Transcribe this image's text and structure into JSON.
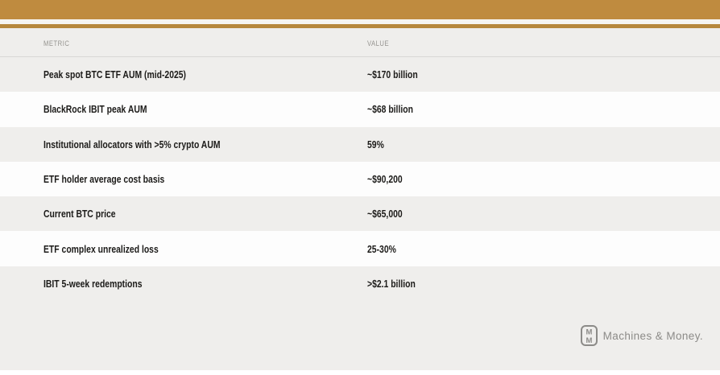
{
  "brand": {
    "top_bar_color": "#bf8b3f",
    "accent_strip_color": "#b7883d",
    "footer_name": "Machines & Money."
  },
  "table": {
    "columns": {
      "metric": "METRIC",
      "value": "VALUE"
    },
    "rows": [
      {
        "metric": "Peak spot BTC ETF AUM (mid-2025)",
        "value": "~$170 billion"
      },
      {
        "metric": "BlackRock IBIT peak AUM",
        "value": "~$68 billion"
      },
      {
        "metric": "Institutional allocators with >5% crypto AUM",
        "value": "59%"
      },
      {
        "metric": "ETF holder average cost basis",
        "value": "~$90,200"
      },
      {
        "metric": "Current BTC price",
        "value": "~$65,000"
      },
      {
        "metric": "ETF complex unrealized loss",
        "value": "25-30%"
      },
      {
        "metric": "IBIT 5-week redemptions",
        "value": ">$2.1 billion"
      }
    ]
  },
  "chart_data": {
    "type": "table",
    "title": "",
    "columns": [
      "METRIC",
      "VALUE"
    ],
    "rows": [
      [
        "Peak spot BTC ETF AUM (mid-2025)",
        "~$170 billion"
      ],
      [
        "BlackRock IBIT peak AUM",
        "~$68 billion"
      ],
      [
        "Institutional allocators with >5% crypto AUM",
        "59%"
      ],
      [
        "ETF holder average cost basis",
        "~$90,200"
      ],
      [
        "Current BTC price",
        "~$65,000"
      ],
      [
        "ETF complex unrealized loss",
        "25-30%"
      ],
      [
        "IBIT 5-week redemptions",
        ">$2.1 billion"
      ]
    ]
  }
}
